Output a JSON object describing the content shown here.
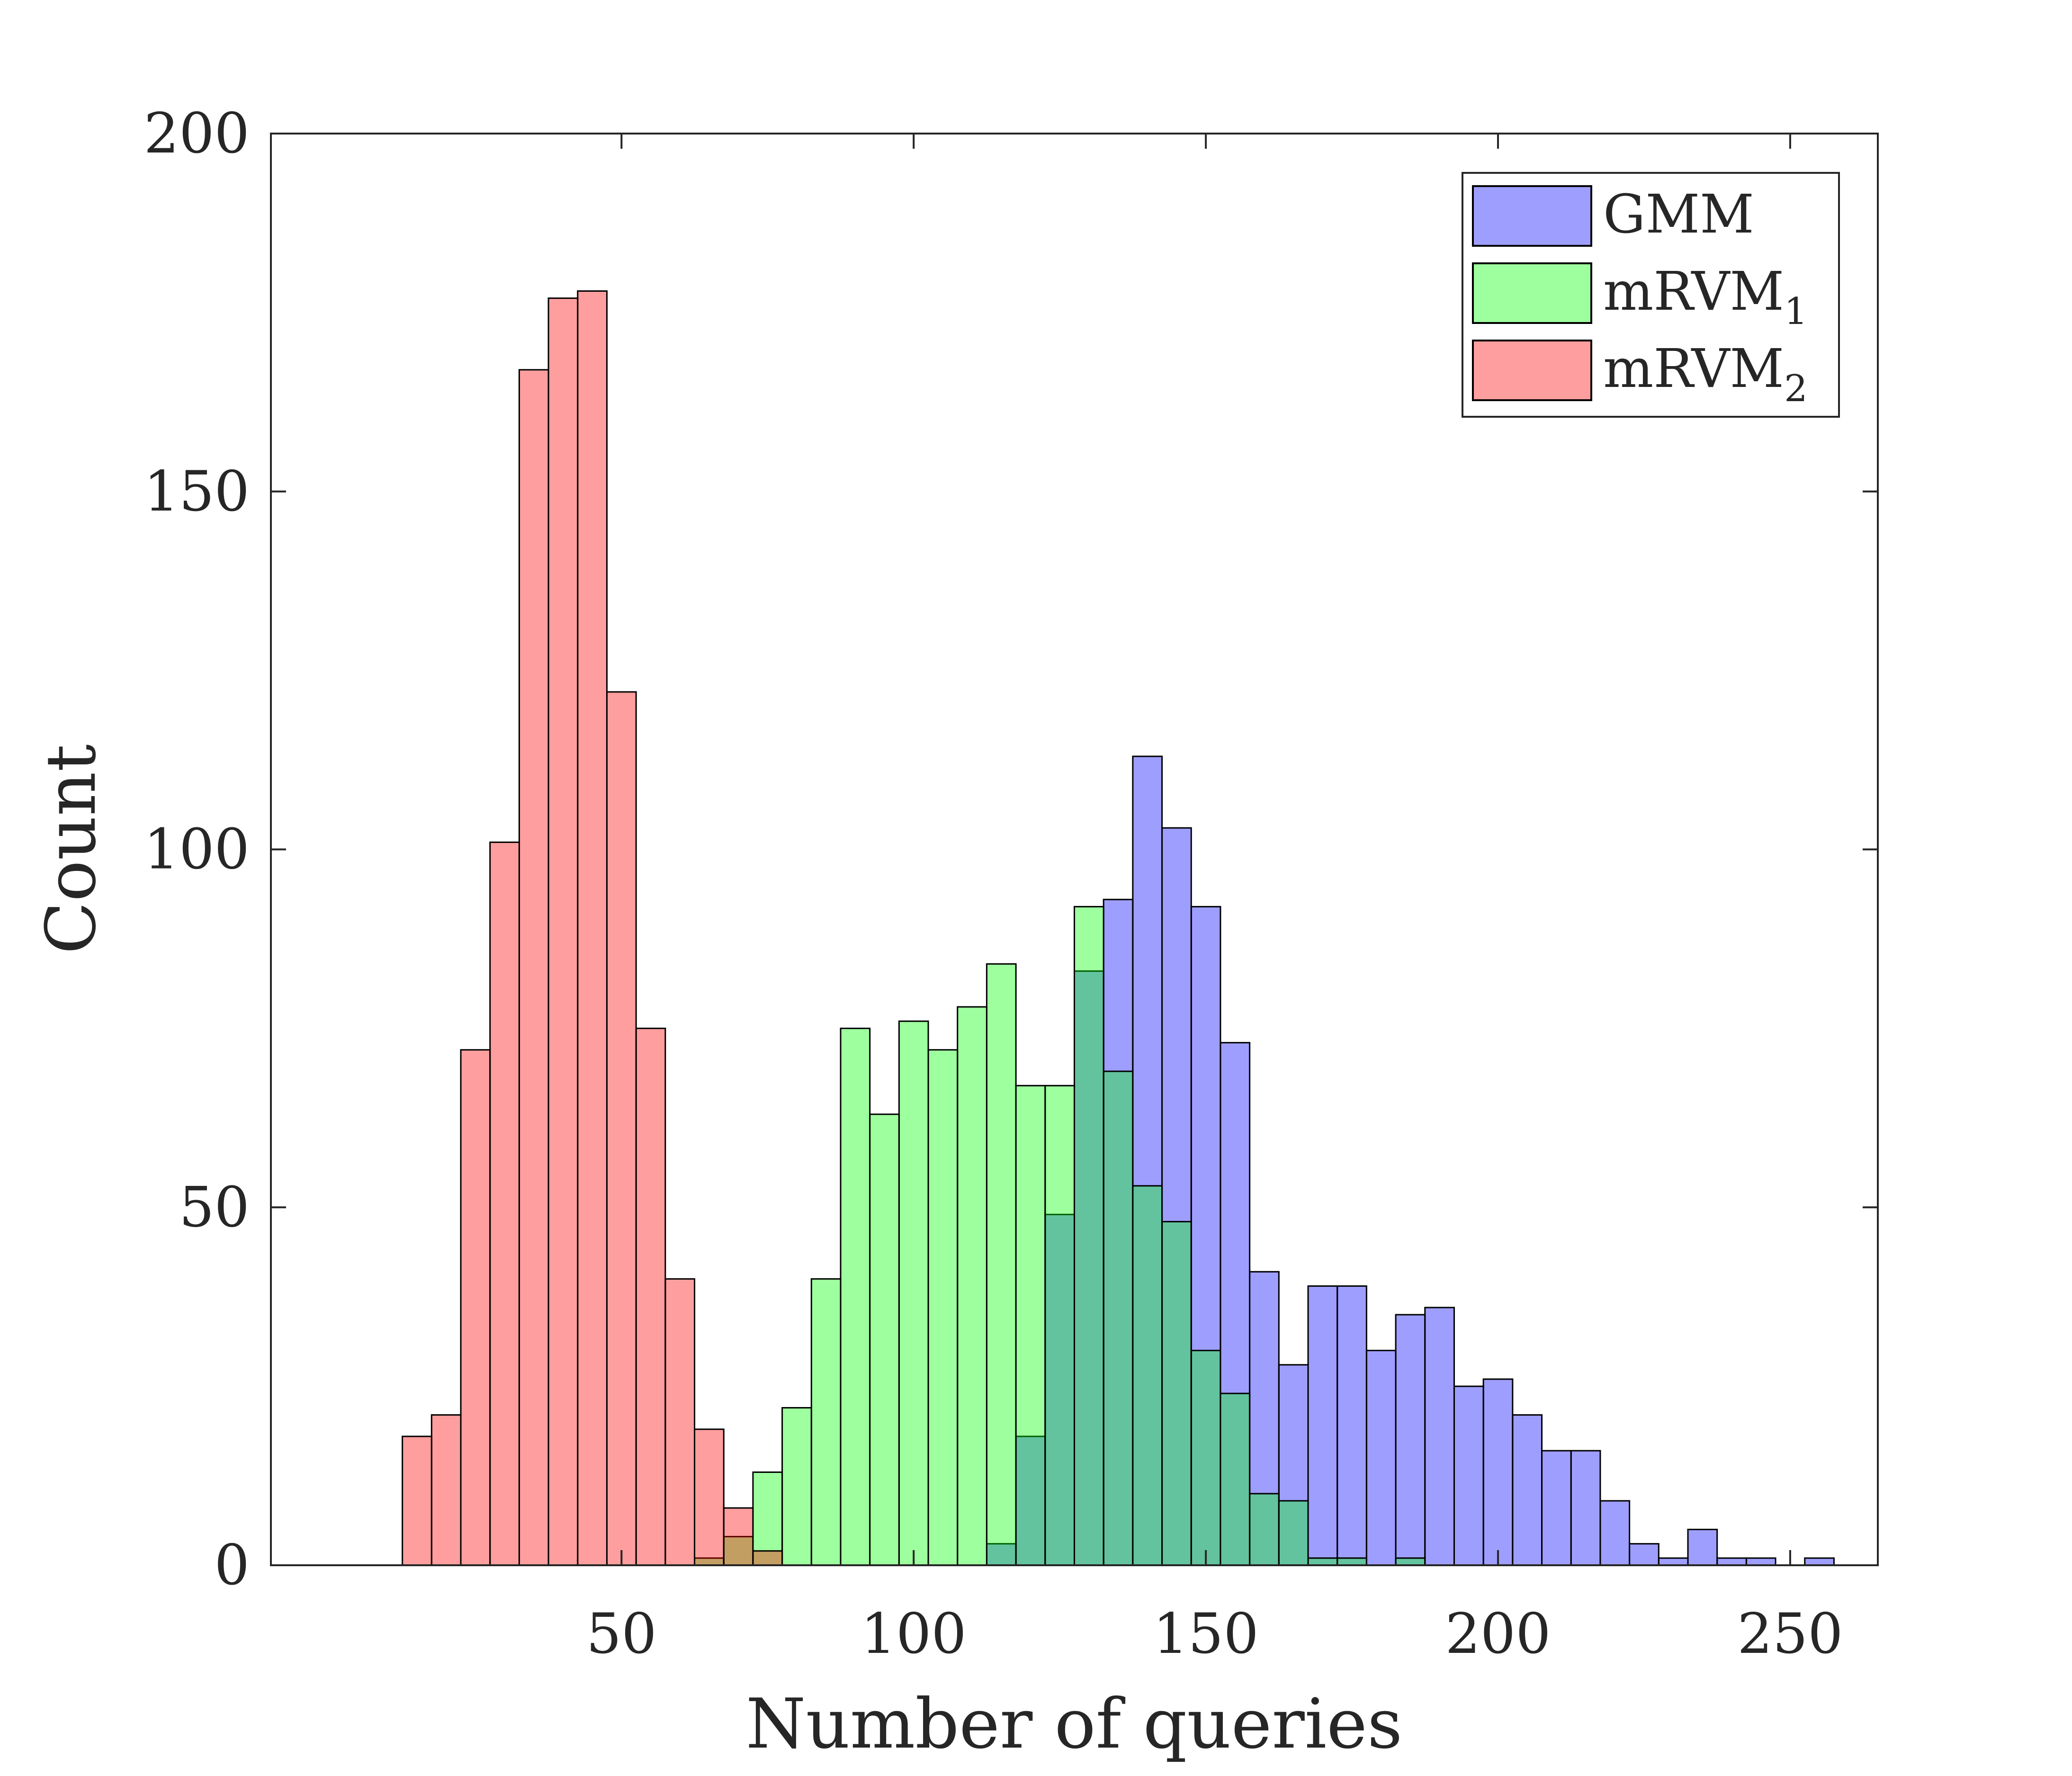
{
  "chart_data": {
    "type": "histogram",
    "title": "",
    "xlabel": "Number of queries",
    "ylabel": "Count",
    "xlim": [
      -10,
      265
    ],
    "ylim": [
      0,
      200
    ],
    "xticks": [
      50,
      100,
      150,
      200,
      250
    ],
    "yticks": [
      0,
      50,
      100,
      150,
      200
    ],
    "xtick_labels": [
      "50",
      "100",
      "150",
      "200",
      "250"
    ],
    "ytick_labels": [
      "0",
      "50",
      "100",
      "150",
      "200"
    ],
    "bin_width": 5,
    "grid": false,
    "legend_position": "top-right",
    "series": [
      {
        "name": "GMM",
        "label_main": "GMM",
        "label_sub": "",
        "color": "#0000ff",
        "opacity": 0.38,
        "bins": [
          {
            "x": 115,
            "y": 3
          },
          {
            "x": 120,
            "y": 18
          },
          {
            "x": 125,
            "y": 49
          },
          {
            "x": 130,
            "y": 83
          },
          {
            "x": 135,
            "y": 93
          },
          {
            "x": 140,
            "y": 113
          },
          {
            "x": 145,
            "y": 103
          },
          {
            "x": 150,
            "y": 92
          },
          {
            "x": 155,
            "y": 73
          },
          {
            "x": 160,
            "y": 41
          },
          {
            "x": 165,
            "y": 28
          },
          {
            "x": 170,
            "y": 39
          },
          {
            "x": 175,
            "y": 39
          },
          {
            "x": 180,
            "y": 30
          },
          {
            "x": 185,
            "y": 35
          },
          {
            "x": 190,
            "y": 36
          },
          {
            "x": 195,
            "y": 25
          },
          {
            "x": 200,
            "y": 26
          },
          {
            "x": 205,
            "y": 21
          },
          {
            "x": 210,
            "y": 16
          },
          {
            "x": 215,
            "y": 16
          },
          {
            "x": 220,
            "y": 9
          },
          {
            "x": 225,
            "y": 3
          },
          {
            "x": 230,
            "y": 1
          },
          {
            "x": 235,
            "y": 5
          },
          {
            "x": 240,
            "y": 1
          },
          {
            "x": 245,
            "y": 1
          },
          {
            "x": 255,
            "y": 1
          }
        ]
      },
      {
        "name": "mRVM1",
        "label_main": "mRVM",
        "label_sub": "1",
        "color": "#00ff00",
        "opacity": 0.38,
        "bins": [
          {
            "x": 65,
            "y": 1
          },
          {
            "x": 70,
            "y": 4
          },
          {
            "x": 75,
            "y": 13
          },
          {
            "x": 80,
            "y": 22
          },
          {
            "x": 85,
            "y": 40
          },
          {
            "x": 90,
            "y": 75
          },
          {
            "x": 95,
            "y": 63
          },
          {
            "x": 100,
            "y": 76
          },
          {
            "x": 105,
            "y": 72
          },
          {
            "x": 110,
            "y": 78
          },
          {
            "x": 115,
            "y": 84
          },
          {
            "x": 120,
            "y": 67
          },
          {
            "x": 125,
            "y": 67
          },
          {
            "x": 130,
            "y": 92
          },
          {
            "x": 135,
            "y": 69
          },
          {
            "x": 140,
            "y": 53
          },
          {
            "x": 145,
            "y": 48
          },
          {
            "x": 150,
            "y": 30
          },
          {
            "x": 155,
            "y": 24
          },
          {
            "x": 160,
            "y": 10
          },
          {
            "x": 165,
            "y": 9
          },
          {
            "x": 170,
            "y": 1
          },
          {
            "x": 175,
            "y": 1
          },
          {
            "x": 185,
            "y": 1
          }
        ]
      },
      {
        "name": "mRVM2",
        "label_main": "mRVM",
        "label_sub": "2",
        "color": "#ff0000",
        "opacity": 0.38,
        "bins": [
          {
            "x": 15,
            "y": 18
          },
          {
            "x": 20,
            "y": 21
          },
          {
            "x": 25,
            "y": 72
          },
          {
            "x": 30,
            "y": 101
          },
          {
            "x": 35,
            "y": 167
          },
          {
            "x": 40,
            "y": 177
          },
          {
            "x": 45,
            "y": 178
          },
          {
            "x": 50,
            "y": 122
          },
          {
            "x": 55,
            "y": 75
          },
          {
            "x": 60,
            "y": 40
          },
          {
            "x": 65,
            "y": 19
          },
          {
            "x": 70,
            "y": 8
          },
          {
            "x": 75,
            "y": 2
          }
        ]
      }
    ]
  }
}
